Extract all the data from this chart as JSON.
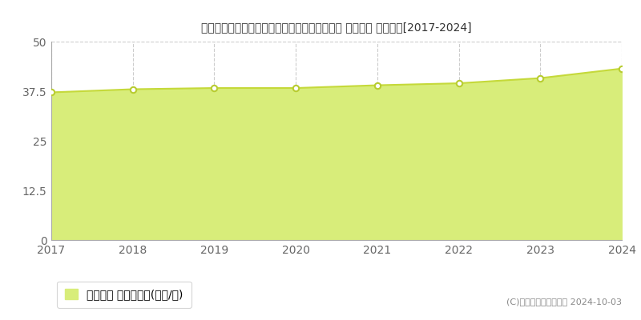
{
  "title": "新潟県新潟市中央区出来島２丁目２８１番１外 基準地価 地価推移[2017-2024]",
  "years": [
    2017,
    2018,
    2019,
    2020,
    2021,
    2022,
    2023,
    2024
  ],
  "values": [
    37.2,
    38.0,
    38.3,
    38.3,
    39.0,
    39.5,
    40.8,
    43.2
  ],
  "ylim": [
    0,
    50
  ],
  "yticks": [
    0,
    12.5,
    25,
    37.5,
    50
  ],
  "line_color": "#c5d93a",
  "fill_color": "#d8ed7a",
  "marker_edge_color": "#b8cc30",
  "marker_face_color": "#ffffff",
  "grid_color": "#cccccc",
  "bg_color": "#ffffff",
  "plot_bg_color": "#ffffff",
  "title_fontsize": 12,
  "tick_fontsize": 9,
  "legend_label": "基準地価 平均坪単価(万円/坪)",
  "copyright_text": "(C)土地価格ドットコム 2024-10-03",
  "tick_color": "#666666",
  "spine_color": "#aaaaaa"
}
